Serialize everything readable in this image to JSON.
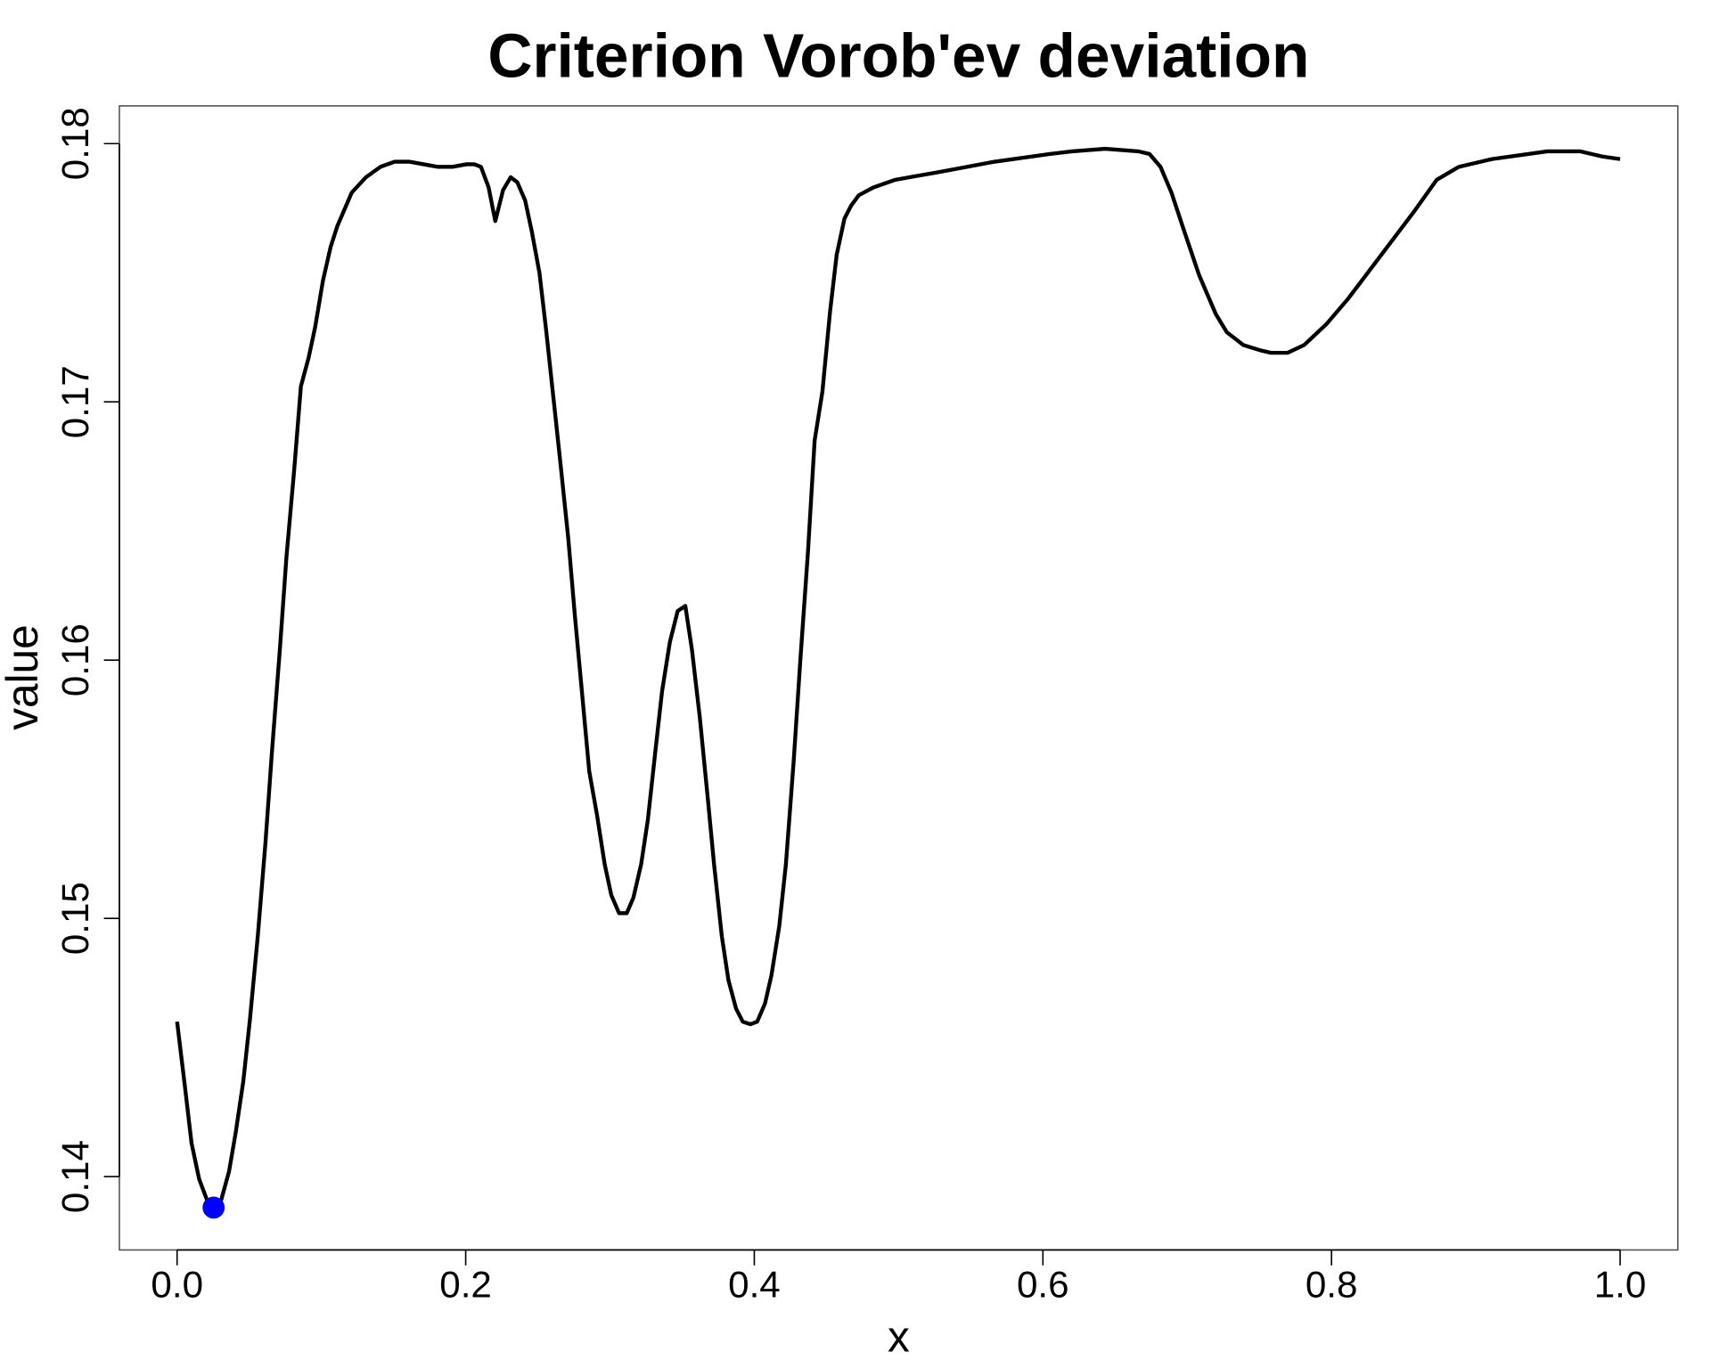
{
  "chart_data": {
    "type": "line",
    "title": "Criterion Vorob'ev deviation",
    "xlabel": "x",
    "ylabel": "value",
    "x": [
      0,
      0.0054,
      0.01,
      0.0153,
      0.0207,
      0.0253,
      0.0306,
      0.036,
      0.0406,
      0.0459,
      0.0505,
      0.0559,
      0.0612,
      0.0658,
      0.0712,
      0.0758,
      0.0812,
      0.0858,
      0.0911,
      0.0957,
      0.1011,
      0.1064,
      0.111,
      0.121,
      0.1309,
      0.1409,
      0.1508,
      0.1608,
      0.1708,
      0.1807,
      0.1907,
      0.2006,
      0.206,
      0.2106,
      0.2159,
      0.2205,
      0.2259,
      0.2312,
      0.2358,
      0.2412,
      0.2458,
      0.2511,
      0.2557,
      0.2611,
      0.2657,
      0.2711,
      0.2757,
      0.281,
      0.2856,
      0.291,
      0.2963,
      0.3009,
      0.3063,
      0.3116,
      0.3162,
      0.3216,
      0.3262,
      0.3315,
      0.3361,
      0.3415,
      0.3469,
      0.3522,
      0.3568,
      0.3622,
      0.3675,
      0.3721,
      0.3775,
      0.3821,
      0.3874,
      0.392,
      0.3974,
      0.402,
      0.4074,
      0.4119,
      0.4173,
      0.4219,
      0.4273,
      0.4319,
      0.4372,
      0.4418,
      0.4472,
      0.4525,
      0.4571,
      0.4625,
      0.4671,
      0.4724,
      0.4824,
      0.4977,
      0.5283,
      0.5666,
      0.6049,
      0.6202,
      0.6432,
      0.6662,
      0.6738,
      0.6815,
      0.6891,
      0.6968,
      0.7083,
      0.7198,
      0.7274,
      0.7389,
      0.7504,
      0.758,
      0.7695,
      0.781,
      0.7963,
      0.8116,
      0.8346,
      0.8576,
      0.8729,
      0.8882,
      0.9112,
      0.9495,
      0.9724,
      0.9877,
      1.0
    ],
    "values": [
      0.146,
      0.1435,
      0.1413,
      0.1399,
      0.1391,
      0.1388,
      0.1391,
      0.1402,
      0.1417,
      0.1437,
      0.1461,
      0.1493,
      0.1529,
      0.1565,
      0.1604,
      0.164,
      0.1674,
      0.1706,
      0.1717,
      0.1729,
      0.1747,
      0.176,
      0.1768,
      0.1781,
      0.1787,
      0.1791,
      0.1793,
      0.1793,
      0.1792,
      0.1791,
      0.1791,
      0.1792,
      0.1792,
      0.1791,
      0.1783,
      0.177,
      0.1782,
      0.1787,
      0.1785,
      0.1778,
      0.1766,
      0.175,
      0.1728,
      0.17,
      0.1676,
      0.1647,
      0.1617,
      0.1585,
      0.1557,
      0.154,
      0.1521,
      0.1509,
      0.1502,
      0.1502,
      0.1508,
      0.1521,
      0.1538,
      0.1565,
      0.1588,
      0.1607,
      0.1619,
      0.1621,
      0.1604,
      0.1578,
      0.1548,
      0.1521,
      0.1493,
      0.1476,
      0.1465,
      0.146,
      0.1459,
      0.146,
      0.1467,
      0.1478,
      0.1497,
      0.1521,
      0.1561,
      0.16,
      0.1642,
      0.1685,
      0.1704,
      0.1735,
      0.1757,
      0.1771,
      0.1776,
      0.178,
      0.1783,
      0.1786,
      0.1789,
      0.1793,
      0.1796,
      0.1797,
      0.1798,
      0.1797,
      0.1796,
      0.1791,
      0.1781,
      0.1768,
      0.1749,
      0.1734,
      0.1727,
      0.1722,
      0.172,
      0.1719,
      0.1719,
      0.1722,
      0.173,
      0.174,
      0.1757,
      0.1774,
      0.1786,
      0.1791,
      0.1794,
      0.1797,
      0.1797,
      0.1795,
      0.1794
    ],
    "color": "#000000",
    "point": {
      "x": 0.0253,
      "value": 0.1388,
      "color": "#0000ff"
    },
    "xlim": [
      -0.04,
      1.04
    ],
    "xticks": [
      {
        "value": 0,
        "label": "0.0"
      },
      0.2,
      0.4,
      0.6,
      0.8,
      {
        "value": 1,
        "label": "1.0"
      }
    ],
    "ylim": [
      0.13716,
      0.18146
    ],
    "yticks": [
      0.14,
      0.15,
      0.16,
      0.17,
      0.18
    ]
  }
}
